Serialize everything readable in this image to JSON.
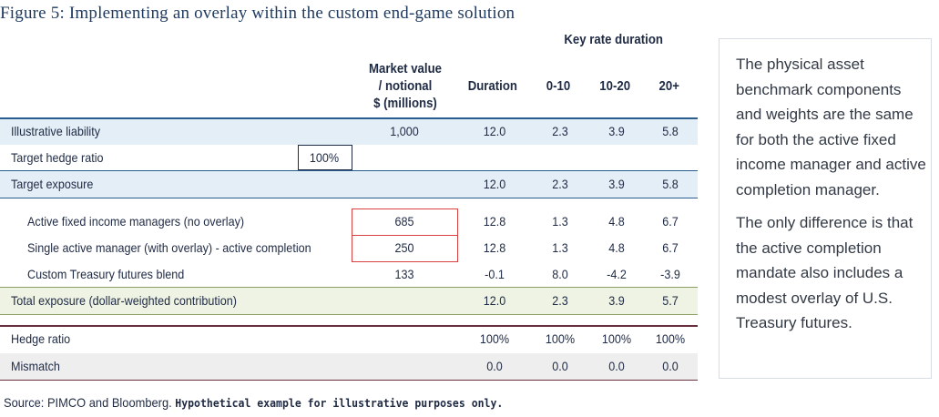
{
  "title": "Figure 5: Implementing an overlay within the custom end-game solution",
  "headers": {
    "key_rate": "Key rate duration",
    "market_value": [
      "Market value",
      "/ notional",
      "$ (millions)"
    ],
    "duration": "Duration",
    "krd_0_10": "0-10",
    "krd_10_20": "10-20",
    "krd_20plus": "20+"
  },
  "rows": [
    {
      "label": "Illustrative liability",
      "mv": "1,000",
      "duration": "12.0",
      "k1": "2.3",
      "k2": "3.9",
      "k3": "5.8"
    },
    {
      "label": "Target hedge ratio",
      "mv": "",
      "hedge": "100%",
      "duration": "",
      "k1": "",
      "k2": "",
      "k3": ""
    },
    {
      "label": "Target exposure",
      "mv": "",
      "duration": "12.0",
      "k1": "2.3",
      "k2": "3.9",
      "k3": "5.8"
    },
    {
      "label": "Active fixed income managers (no overlay)",
      "mv": "685",
      "duration": "12.8",
      "k1": "1.3",
      "k2": "4.8",
      "k3": "6.7"
    },
    {
      "label": "Single active manager (with overlay) - active completion",
      "mv": "250",
      "duration": "12.8",
      "k1": "1.3",
      "k2": "4.8",
      "k3": "6.7"
    },
    {
      "label": "Custom Treasury futures blend",
      "mv": "133",
      "duration": "-0.1",
      "k1": "8.0",
      "k2": "-4.2",
      "k3": "-3.9"
    },
    {
      "label": "Total exposure (dollar-weighted contribution)",
      "mv": "",
      "duration": "12.0",
      "k1": "2.3",
      "k2": "3.9",
      "k3": "5.7"
    },
    {
      "label": "Hedge ratio",
      "mv": "",
      "duration": "100%",
      "k1": "100%",
      "k2": "100%",
      "k3": "100%"
    },
    {
      "label": "Mismatch",
      "mv": "",
      "duration": "0.0",
      "k1": "0.0",
      "k2": "0.0",
      "k3": "0.0"
    }
  ],
  "sidebar": {
    "p1": "The physical asset benchmark components and weights are the same for both the active fixed income manager and active completion manager.",
    "p2": "The only difference is that the active completion mandate also includes a modest overlay of U.S. Treasury futures."
  },
  "source": {
    "normal": "Source: PIMCO and Bloomberg. ",
    "bold": "Hypothetical example for illustrative purposes only."
  },
  "colors": {
    "band_blue": "#e3eef7",
    "band_green": "#eef3e4",
    "band_grey": "#eeeeee",
    "line_blue": "#2a5d8f",
    "line_green": "#8aa060",
    "box_red": "#d94040"
  }
}
